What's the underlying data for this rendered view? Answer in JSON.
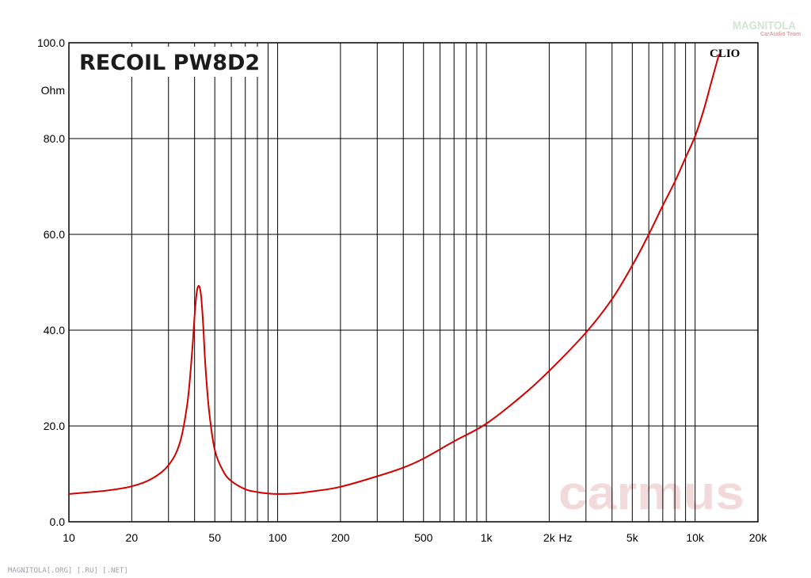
{
  "chart_data": {
    "type": "line",
    "title": "RECOIL PW8D2",
    "ylabel": "Ohm",
    "xlabel": "Hz",
    "xscale": "log",
    "xlim": [
      10,
      20000
    ],
    "ylim": [
      0,
      100
    ],
    "grid": true,
    "x_tick_values": [
      10,
      20,
      50,
      100,
      200,
      500,
      1000,
      2000,
      5000,
      10000,
      20000
    ],
    "x_tick_labels": [
      "10",
      "20",
      "50",
      "100",
      "200",
      "500",
      "1k",
      "2k",
      "5k",
      "10k",
      "20k"
    ],
    "y_tick_values": [
      0,
      20,
      40,
      60,
      80,
      100
    ],
    "y_tick_labels": [
      "0.0",
      "20.0",
      "40.0",
      "60.0",
      "80.0",
      "100.0"
    ],
    "series": [
      {
        "color": "#d40000",
        "x": [
          10,
          15,
          20,
          25,
          30,
          34,
          37,
          39,
          40,
          41,
          42,
          43,
          44,
          45,
          47,
          50,
          55,
          60,
          70,
          80,
          90,
          100,
          120,
          150,
          200,
          300,
          400,
          500,
          700,
          1000,
          1500,
          2000,
          3000,
          4000,
          5000,
          6000,
          7000,
          8000,
          9000,
          10000,
          11000,
          12000,
          13000
        ],
        "y": [
          5.8,
          6.5,
          7.4,
          9.0,
          11.8,
          16.5,
          25.0,
          36.0,
          43.0,
          48.0,
          49.2,
          47.0,
          41.0,
          33.0,
          23.0,
          15.0,
          10.5,
          8.5,
          6.8,
          6.2,
          5.9,
          5.8,
          5.9,
          6.4,
          7.3,
          9.5,
          11.3,
          13.2,
          16.8,
          20.5,
          26.5,
          31.5,
          39.5,
          46.5,
          53.5,
          60.0,
          66.0,
          71.0,
          76.0,
          80.5,
          86.0,
          92.0,
          97.5
        ]
      }
    ],
    "annotations": [
      "CLIO"
    ]
  },
  "watermarks": {
    "carmus": "carmus",
    "brand": "MAGNITOLA",
    "team": "CarAudio Team",
    "footer": "MAGNITOLA[.ORG] [.RU] [.NET]"
  }
}
